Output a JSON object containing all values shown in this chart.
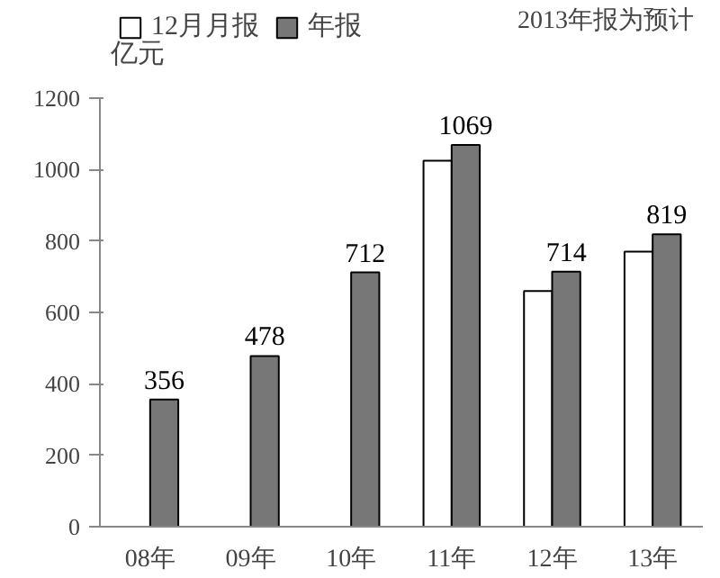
{
  "chart_data": {
    "type": "bar",
    "ylabel": "亿元",
    "annotations": [
      "2013年报为预计"
    ],
    "categories": [
      "08年",
      "09年",
      "10年",
      "11年",
      "12年",
      "13年"
    ],
    "series": [
      {
        "name": "12月月报",
        "color": "#ffffff",
        "values": [
          null,
          null,
          null,
          1025,
          660,
          770
        ]
      },
      {
        "name": "年报",
        "color": "#777777",
        "values": [
          356,
          478,
          712,
          1069,
          714,
          819
        ],
        "value_labels": [
          "356",
          "478",
          "712",
          "1069",
          "714",
          "819"
        ]
      }
    ],
    "ylim": [
      0,
      1200
    ],
    "yticks": [
      0,
      200,
      400,
      600,
      800,
      1000,
      1200
    ],
    "grid": false,
    "legend": "top"
  }
}
